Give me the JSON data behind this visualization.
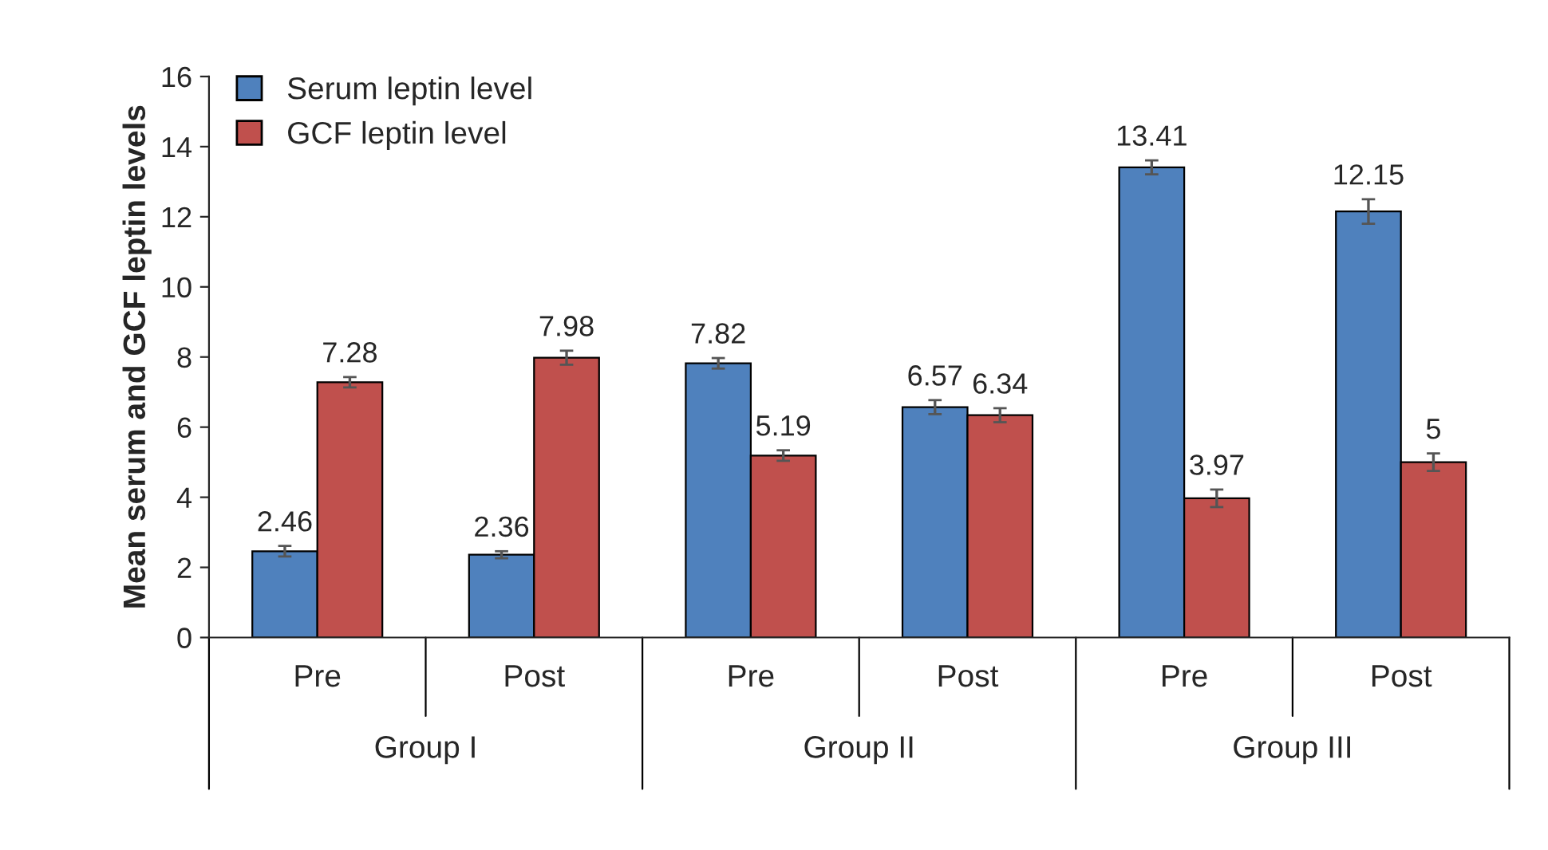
{
  "chart_data": {
    "type": "bar",
    "ylabel": "Mean serum and GCF leptin levels",
    "categories": [
      "Pre",
      "Post",
      "Pre",
      "Post",
      "Pre",
      "Post"
    ],
    "series": [
      {
        "name": "Serum leptin level",
        "color": "#4f81bd",
        "values": [
          2.46,
          2.36,
          7.82,
          6.57,
          13.41,
          12.15
        ],
        "errors": [
          0.15,
          0.1,
          0.15,
          0.2,
          0.2,
          0.35
        ]
      },
      {
        "name": "GCF leptin level",
        "color": "#c0504d",
        "values": [
          7.28,
          7.98,
          5.19,
          6.34,
          3.97,
          5
        ],
        "errors": [
          0.15,
          0.2,
          0.15,
          0.2,
          0.25,
          0.25
        ]
      }
    ],
    "annotations": [
      "Group I",
      "Group II",
      "Group III"
    ],
    "ylim": [
      0,
      16
    ],
    "yticks": [
      0,
      2,
      4,
      6,
      8,
      10,
      12,
      14,
      16
    ],
    "grid": false,
    "legend": "top left",
    "data_labels": true
  }
}
